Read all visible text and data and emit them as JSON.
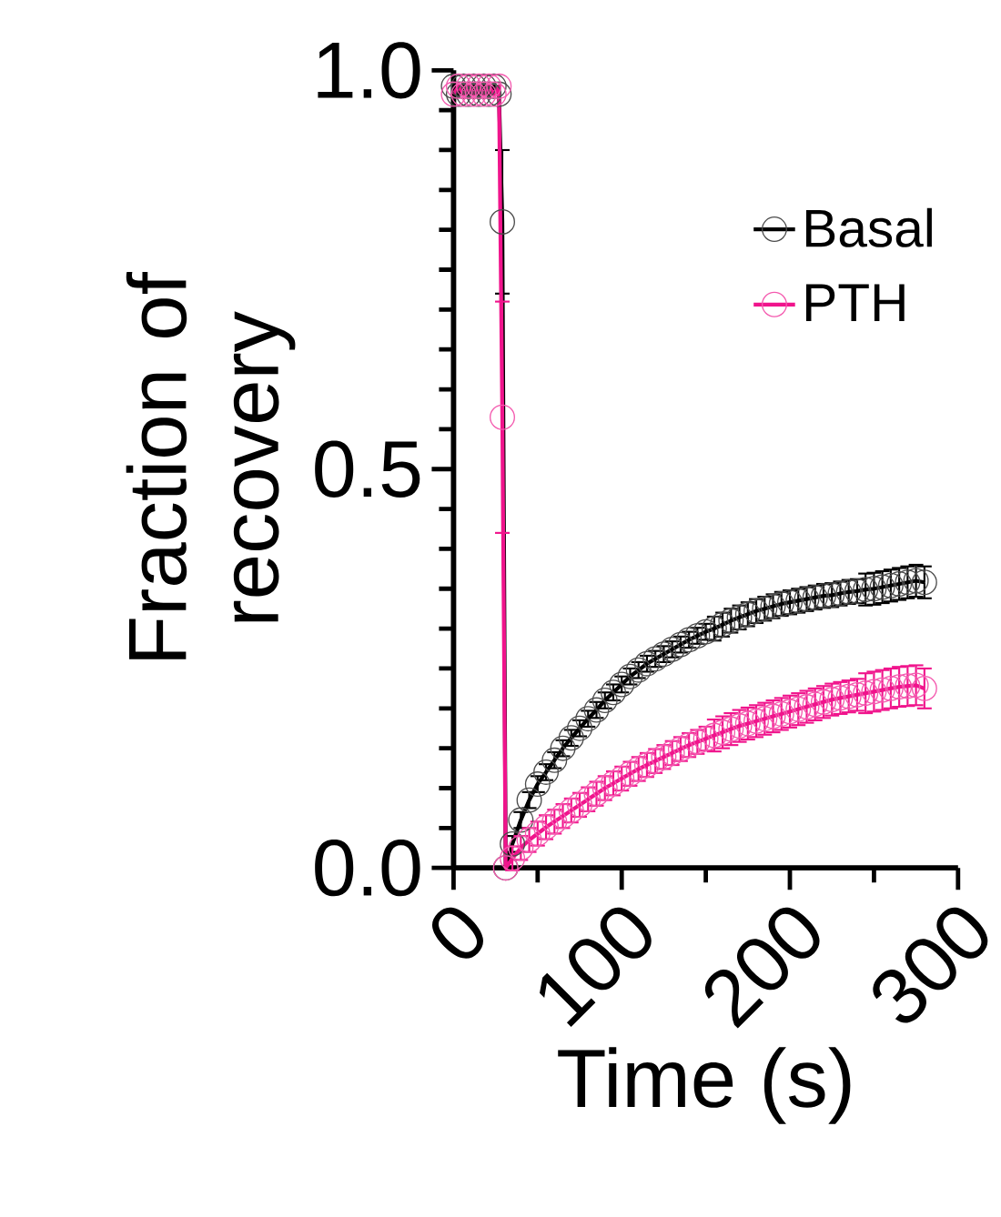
{
  "chart_data": {
    "type": "line",
    "xlabel": "Time (s)",
    "ylabel": "Fraction of recovery",
    "xlim": [
      0,
      300
    ],
    "ylim": [
      0,
      1
    ],
    "xticks": [
      0,
      100,
      200,
      300
    ],
    "yticks": [
      {
        "value": 0,
        "label": "0.0"
      },
      {
        "value": 0.5,
        "label": "0.5"
      },
      {
        "value": 1,
        "label": "1.0"
      }
    ],
    "x": [
      0,
      3,
      6,
      9,
      12,
      15,
      18,
      21,
      24,
      27,
      29,
      31,
      35,
      40,
      45,
      50,
      55,
      60,
      65,
      70,
      75,
      80,
      85,
      90,
      95,
      100,
      105,
      110,
      115,
      120,
      125,
      130,
      135,
      140,
      145,
      150,
      155,
      160,
      165,
      170,
      175,
      180,
      185,
      190,
      195,
      200,
      205,
      210,
      215,
      220,
      225,
      230,
      235,
      240,
      245,
      250,
      255,
      260,
      265,
      270,
      275,
      280
    ],
    "marker": "circle",
    "line_style": "solid",
    "legend": "top right",
    "series": [
      {
        "name": "Basal",
        "color": "#000000",
        "values": [
          0.98,
          0.97,
          0.98,
          0.97,
          0.98,
          0.97,
          0.98,
          0.97,
          0.98,
          0.97,
          0.81,
          0.0,
          0.03,
          0.06,
          0.085,
          0.105,
          0.12,
          0.135,
          0.15,
          0.163,
          0.175,
          0.187,
          0.198,
          0.21,
          0.22,
          0.23,
          0.24,
          0.248,
          0.256,
          0.262,
          0.268,
          0.274,
          0.28,
          0.286,
          0.291,
          0.296,
          0.3,
          0.305,
          0.31,
          0.314,
          0.318,
          0.322,
          0.325,
          0.328,
          0.331,
          0.333,
          0.335,
          0.337,
          0.339,
          0.341,
          0.342,
          0.344,
          0.346,
          0.347,
          0.349,
          0.35,
          0.352,
          0.354,
          0.356,
          0.358,
          0.36,
          0.358
        ],
        "errors": [
          null,
          null,
          null,
          null,
          null,
          null,
          null,
          null,
          null,
          null,
          0.09,
          null,
          0.01,
          0.01,
          0.01,
          0.01,
          0.01,
          0.01,
          0.01,
          0.01,
          0.01,
          0.01,
          0.01,
          0.01,
          0.01,
          0.01,
          0.01,
          0.01,
          0.01,
          0.01,
          0.01,
          0.01,
          0.01,
          0.01,
          0.01,
          0.01,
          0.015,
          0.015,
          0.015,
          0.015,
          0.015,
          0.015,
          0.015,
          0.015,
          0.015,
          0.015,
          0.015,
          0.015,
          0.015,
          0.015,
          0.015,
          0.015,
          0.015,
          0.015,
          0.02,
          0.02,
          0.02,
          0.02,
          0.02,
          0.02,
          0.02,
          0.02
        ]
      },
      {
        "name": "PTH",
        "color": "#f0148c",
        "values": [
          0.97,
          0.98,
          0.97,
          0.98,
          0.97,
          0.98,
          0.97,
          0.98,
          0.97,
          0.98,
          0.565,
          0.0,
          0.012,
          0.025,
          0.035,
          0.043,
          0.051,
          0.058,
          0.065,
          0.072,
          0.079,
          0.086,
          0.093,
          0.1,
          0.106,
          0.112,
          0.118,
          0.124,
          0.129,
          0.134,
          0.139,
          0.144,
          0.149,
          0.154,
          0.158,
          0.162,
          0.166,
          0.17,
          0.174,
          0.178,
          0.181,
          0.184,
          0.187,
          0.19,
          0.193,
          0.196,
          0.199,
          0.202,
          0.205,
          0.208,
          0.211,
          0.213,
          0.215,
          0.217,
          0.219,
          0.221,
          0.223,
          0.225,
          0.227,
          0.228,
          0.229,
          0.225
        ],
        "errors": [
          null,
          null,
          null,
          null,
          null,
          null,
          null,
          null,
          null,
          null,
          0.145,
          null,
          0.015,
          0.015,
          0.015,
          0.015,
          0.015,
          0.015,
          0.015,
          0.015,
          0.015,
          0.015,
          0.015,
          0.015,
          0.015,
          0.015,
          0.015,
          0.015,
          0.015,
          0.015,
          0.015,
          0.015,
          0.015,
          0.015,
          0.015,
          0.015,
          0.02,
          0.02,
          0.02,
          0.02,
          0.02,
          0.02,
          0.02,
          0.02,
          0.02,
          0.02,
          0.02,
          0.02,
          0.02,
          0.02,
          0.02,
          0.02,
          0.02,
          0.02,
          0.025,
          0.025,
          0.025,
          0.025,
          0.025,
          0.025,
          0.025,
          0.025
        ]
      }
    ]
  }
}
